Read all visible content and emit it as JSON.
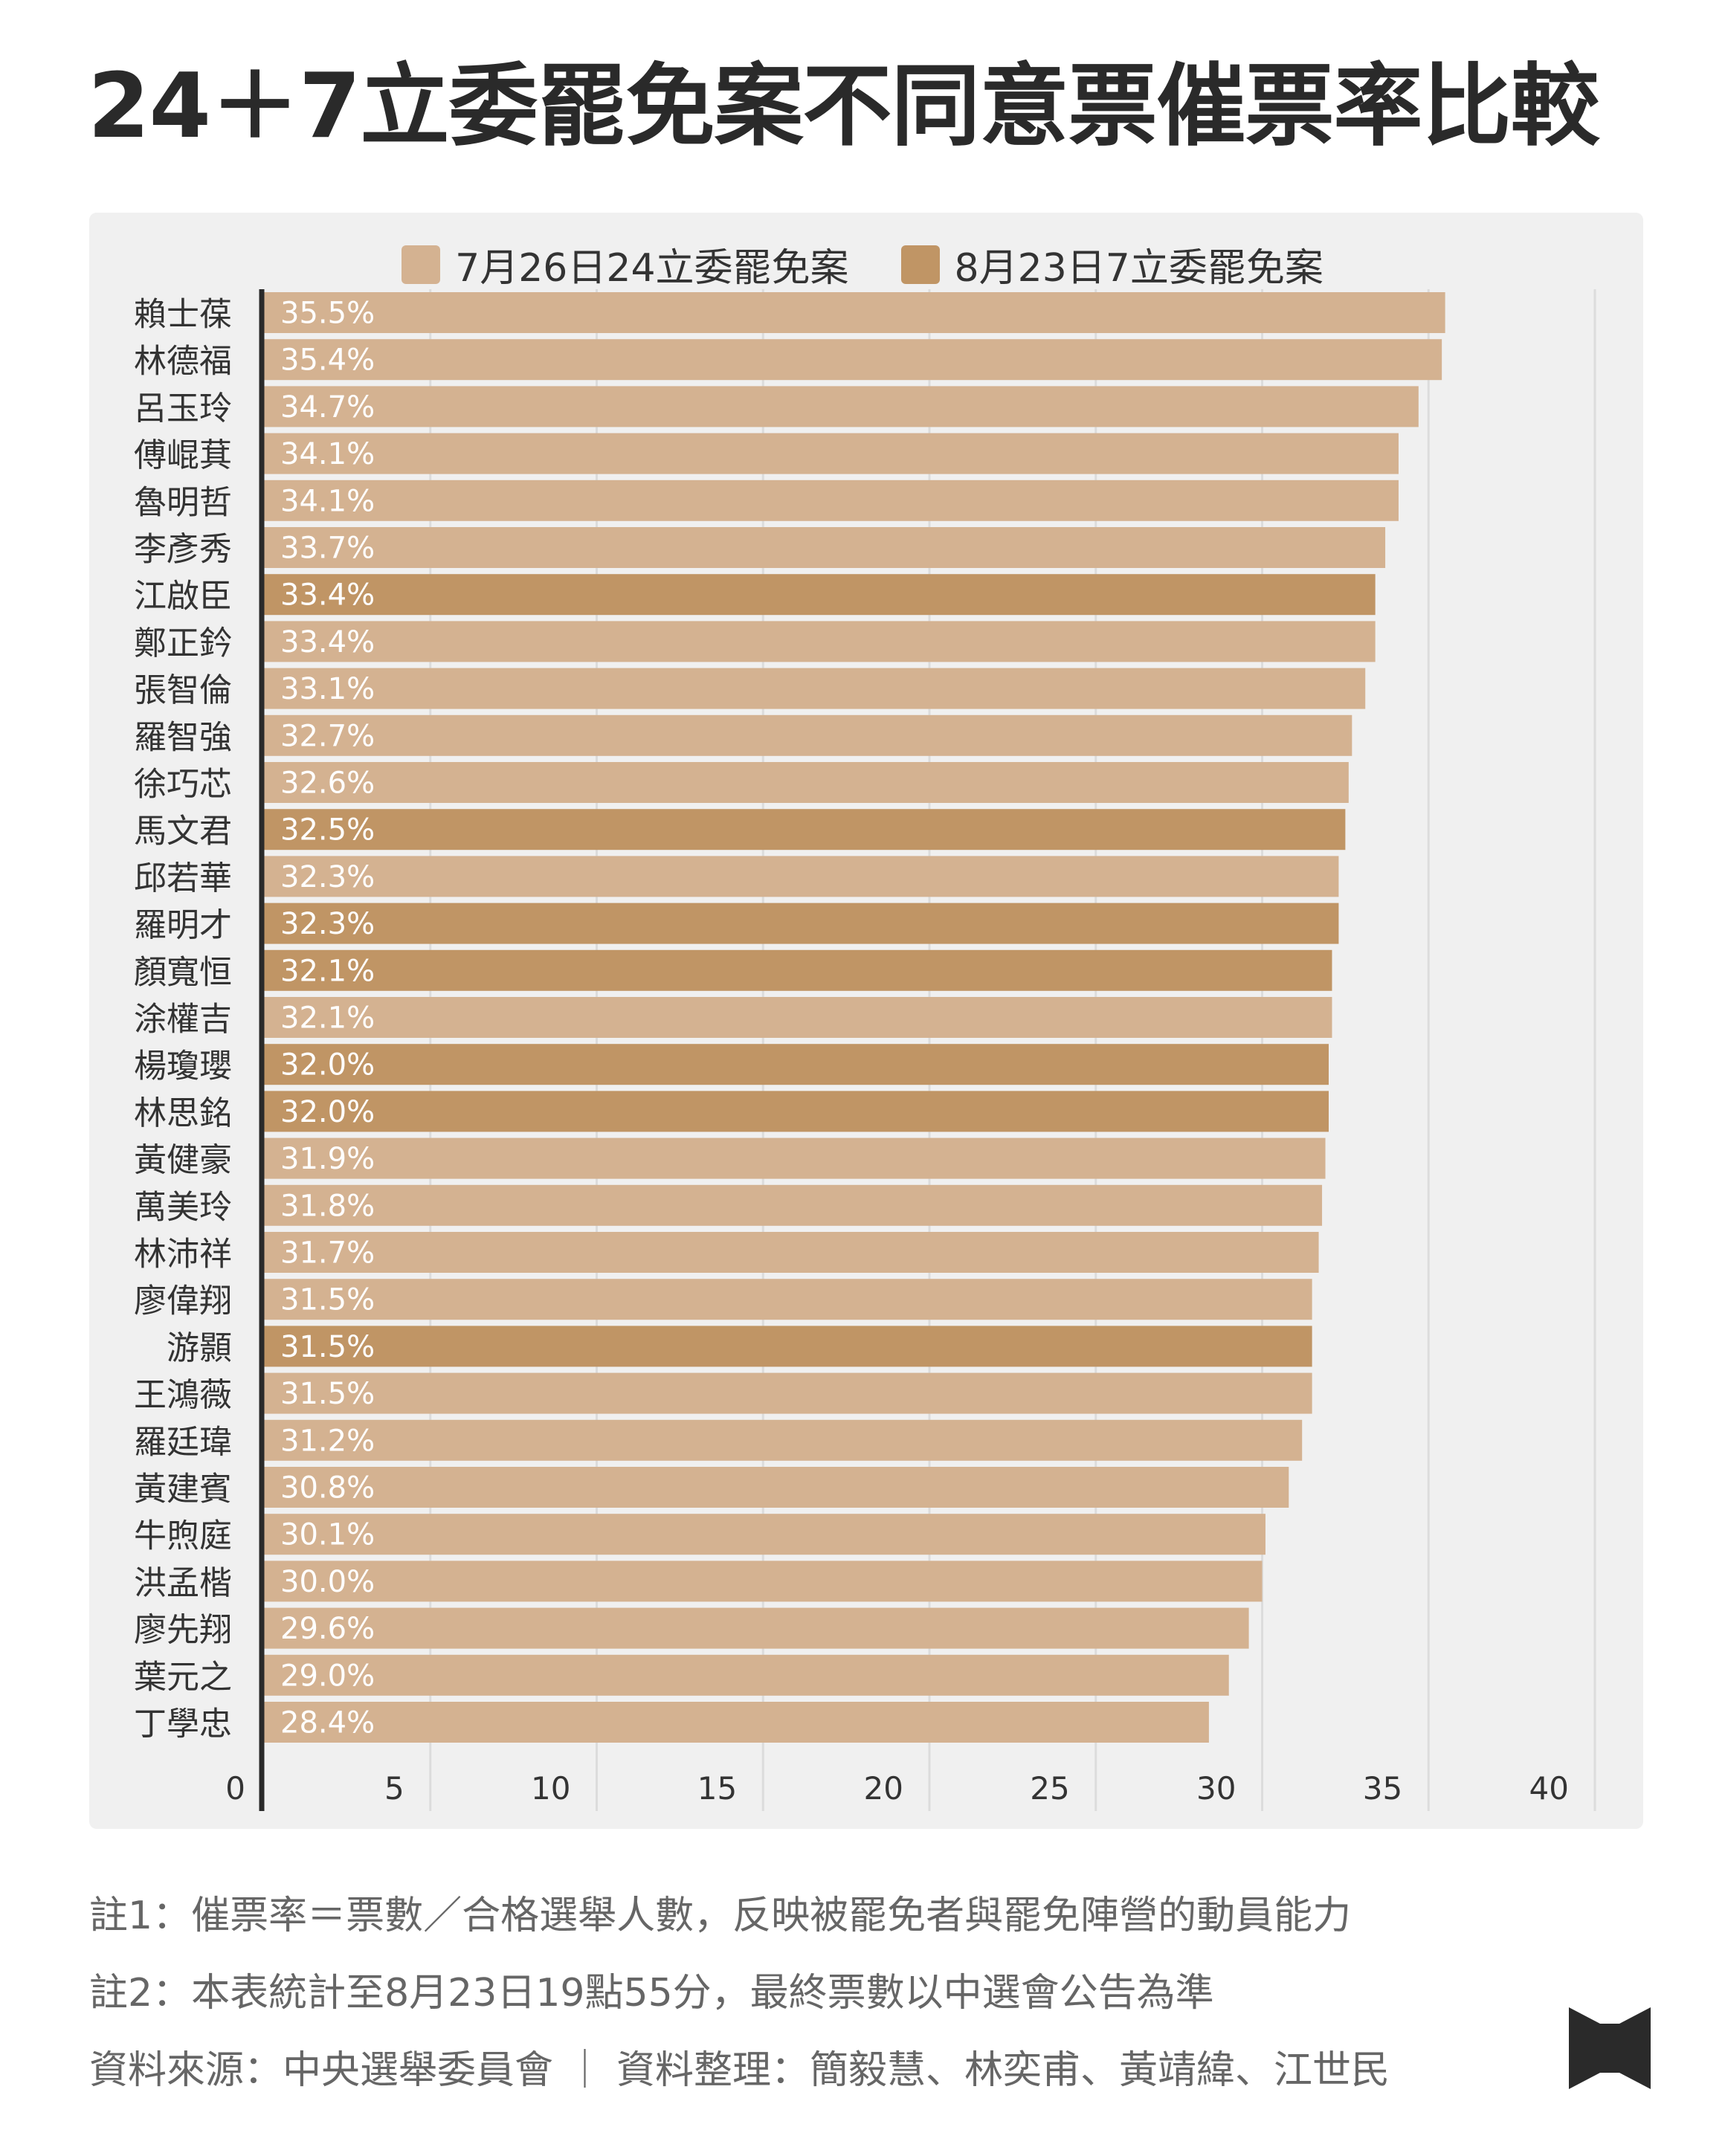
{
  "title": "24＋7立委罷免案不同意票催票率比較",
  "legend": [
    {
      "label": "7月26日24立委罷免案",
      "color": "#d4b291"
    },
    {
      "label": "8月23日7立委罷免案",
      "color": "#c09565"
    }
  ],
  "chart_data": {
    "type": "bar",
    "orientation": "horizontal",
    "title": "24＋7立委罷免案不同意票催票率比較",
    "xlim": [
      0,
      40
    ],
    "x_ticks": [
      0,
      5,
      10,
      15,
      20,
      25,
      30,
      35,
      40
    ],
    "grid": true,
    "legend_position": "top-center",
    "categories": [
      "賴士葆",
      "林德福",
      "呂玉玲",
      "傅崐萁",
      "魯明哲",
      "李彥秀",
      "江啟臣",
      "鄭正鈐",
      "張智倫",
      "羅智強",
      "徐巧芯",
      "馬文君",
      "邱若華",
      "羅明才",
      "顏寬恒",
      "涂權吉",
      "楊瓊瓔",
      "林思銘",
      "黃健豪",
      "萬美玲",
      "林沛祥",
      "廖偉翔",
      "游顥",
      "王鴻薇",
      "羅廷瑋",
      "黃建賓",
      "牛煦庭",
      "洪孟楷",
      "廖先翔",
      "葉元之",
      "丁學忠"
    ],
    "values": [
      35.5,
      35.4,
      34.7,
      34.1,
      34.1,
      33.7,
      33.4,
      33.4,
      33.1,
      32.7,
      32.6,
      32.5,
      32.3,
      32.3,
      32.1,
      32.1,
      32.0,
      32.0,
      31.9,
      31.8,
      31.7,
      31.5,
      31.5,
      31.5,
      31.2,
      30.8,
      30.1,
      30.0,
      29.6,
      29.0,
      28.4
    ],
    "value_labels": [
      "35.5%",
      "35.4%",
      "34.7%",
      "34.1%",
      "34.1%",
      "33.7%",
      "33.4%",
      "33.4%",
      "33.1%",
      "32.7%",
      "32.6%",
      "32.5%",
      "32.3%",
      "32.3%",
      "32.1%",
      "32.1%",
      "32.0%",
      "32.0%",
      "31.9%",
      "31.8%",
      "31.7%",
      "31.5%",
      "31.5%",
      "31.5%",
      "31.2%",
      "30.8%",
      "30.1%",
      "30.0%",
      "29.6%",
      "29.0%",
      "28.4%"
    ],
    "group": [
      0,
      0,
      0,
      0,
      0,
      0,
      1,
      0,
      0,
      0,
      0,
      1,
      0,
      1,
      1,
      0,
      1,
      1,
      0,
      0,
      0,
      0,
      1,
      0,
      0,
      0,
      0,
      0,
      0,
      0,
      0
    ],
    "series": [
      {
        "name": "7月26日24立委罷免案",
        "color": "#d4b291"
      },
      {
        "name": "8月23日7立委罷免案",
        "color": "#c09565"
      }
    ]
  },
  "notes": [
    "註1：催票率＝票數／合格選舉人數，反映被罷免者與罷免陣營的動員能力",
    "註2：本表統計至8月23日19點55分，最終票數以中選會公告為準",
    "資料來源：中央選舉委員會 ｜ 資料整理：簡毅慧、林奕甫、黃靖緯、江世民"
  ],
  "logo_icon": "publisher-logo-icon"
}
